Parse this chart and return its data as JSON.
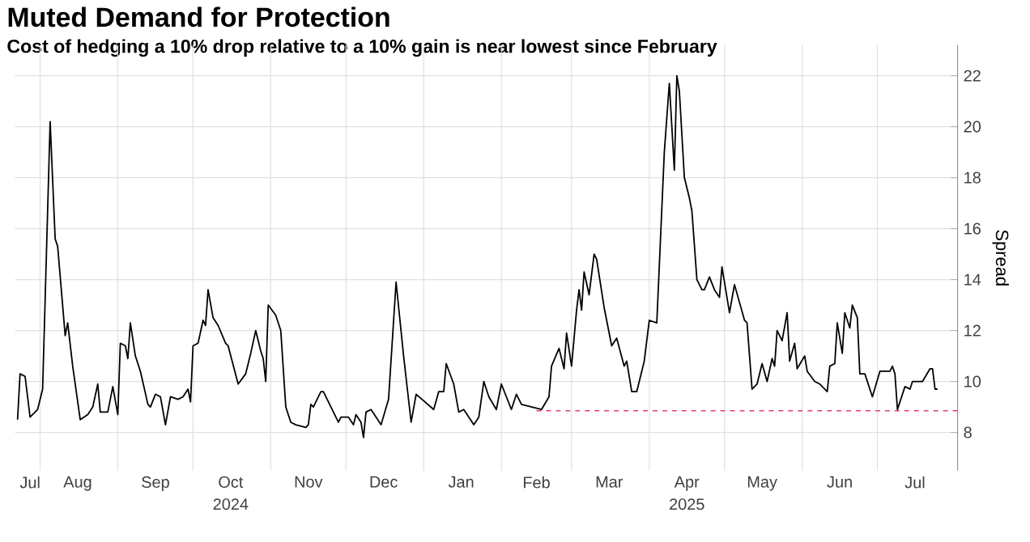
{
  "chart_data": {
    "type": "line",
    "title": "Muted Demand for Protection",
    "subtitle": "Cost of hedging a 10% drop relative to a 10% gain is near lowest since February",
    "ylabel": "Spread",
    "xlim": [
      "2024-07-22",
      "2025-08-02"
    ],
    "ylim": [
      6.5,
      23.2
    ],
    "yticks": [
      8,
      10,
      12,
      14,
      16,
      18,
      20,
      22
    ],
    "xticks": [
      {
        "value": "2024-07-28",
        "label": "Jul"
      },
      {
        "value": "2024-08-01",
        "label": null
      },
      {
        "value": "2024-08-16",
        "label": "Aug"
      },
      {
        "value": "2024-09-01",
        "label": null
      },
      {
        "value": "2024-09-16",
        "label": "Sep"
      },
      {
        "value": "2024-10-01",
        "label": null
      },
      {
        "value": "2024-10-16",
        "label": "Oct"
      },
      {
        "value": "2024-11-01",
        "label": null
      },
      {
        "value": "2024-11-16",
        "label": "Nov"
      },
      {
        "value": "2024-12-01",
        "label": null
      },
      {
        "value": "2024-12-16",
        "label": "Dec"
      },
      {
        "value": "2025-01-01",
        "label": null
      },
      {
        "value": "2025-01-16",
        "label": "Jan"
      },
      {
        "value": "2025-02-01",
        "label": null
      },
      {
        "value": "2025-02-15",
        "label": "Feb"
      },
      {
        "value": "2025-03-01",
        "label": null
      },
      {
        "value": "2025-03-16",
        "label": "Mar"
      },
      {
        "value": "2025-04-01",
        "label": null
      },
      {
        "value": "2025-04-16",
        "label": "Apr"
      },
      {
        "value": "2025-05-01",
        "label": null
      },
      {
        "value": "2025-05-16",
        "label": "May"
      },
      {
        "value": "2025-06-01",
        "label": null
      },
      {
        "value": "2025-06-16",
        "label": "Jun"
      },
      {
        "value": "2025-07-01",
        "label": null
      },
      {
        "value": "2025-07-16",
        "label": "Jul"
      }
    ],
    "annotations": [
      "2024",
      "2025"
    ],
    "grid": true,
    "series": [
      {
        "color": "#000000",
        "x": [
          "2024-07-23",
          "2024-07-24",
          "2024-07-26",
          "2024-07-28",
          "2024-07-31",
          "2024-08-02",
          "2024-08-05",
          "2024-08-07",
          "2024-08-08",
          "2024-08-11",
          "2024-08-12",
          "2024-08-14",
          "2024-08-17",
          "2024-08-20",
          "2024-08-22",
          "2024-08-24",
          "2024-08-25",
          "2024-08-28",
          "2024-08-30",
          "2024-09-01",
          "2024-09-02",
          "2024-09-04",
          "2024-09-05",
          "2024-09-06",
          "2024-09-08",
          "2024-09-10",
          "2024-09-13",
          "2024-09-14",
          "2024-09-16",
          "2024-09-18",
          "2024-09-20",
          "2024-09-22",
          "2024-09-25",
          "2024-09-27",
          "2024-09-29",
          "2024-09-30",
          "2024-10-01",
          "2024-10-03",
          "2024-10-05",
          "2024-10-06",
          "2024-10-07",
          "2024-10-09",
          "2024-10-11",
          "2024-10-14",
          "2024-10-15",
          "2024-10-19",
          "2024-10-22",
          "2024-10-24",
          "2024-10-26",
          "2024-10-28",
          "2024-10-29",
          "2024-10-30",
          "2024-10-31",
          "2024-11-03",
          "2024-11-05",
          "2024-11-07",
          "2024-11-09",
          "2024-11-11",
          "2024-11-15",
          "2024-11-16",
          "2024-11-17",
          "2024-11-18",
          "2024-11-21",
          "2024-11-22",
          "2024-11-28",
          "2024-11-29",
          "2024-12-02",
          "2024-12-04",
          "2024-12-05",
          "2024-12-07",
          "2024-12-08",
          "2024-12-09",
          "2024-12-11",
          "2024-12-15",
          "2024-12-18",
          "2024-12-21",
          "2024-12-24",
          "2024-12-27",
          "2024-12-29",
          "2025-01-05",
          "2025-01-07",
          "2025-01-09",
          "2025-01-10",
          "2025-01-13",
          "2025-01-15",
          "2025-01-17",
          "2025-01-21",
          "2025-01-23",
          "2025-01-25",
          "2025-01-27",
          "2025-01-30",
          "2025-02-01",
          "2025-02-05",
          "2025-02-07",
          "2025-02-09",
          "2025-02-13",
          "2025-02-17",
          "2025-02-20",
          "2025-02-21",
          "2025-02-24",
          "2025-02-26",
          "2025-02-27",
          "2025-03-01",
          "2025-03-03",
          "2025-03-04",
          "2025-03-05",
          "2025-03-06",
          "2025-03-08",
          "2025-03-10",
          "2025-03-11",
          "2025-03-14",
          "2025-03-17",
          "2025-03-19",
          "2025-03-22",
          "2025-03-23",
          "2025-03-25",
          "2025-03-27",
          "2025-03-29",
          "2025-03-30",
          "2025-04-01",
          "2025-04-04",
          "2025-04-07",
          "2025-04-09",
          "2025-04-11",
          "2025-04-12",
          "2025-04-13",
          "2025-04-15",
          "2025-04-17",
          "2025-04-18",
          "2025-04-20",
          "2025-04-22",
          "2025-04-23",
          "2025-04-25",
          "2025-04-27",
          "2025-04-29",
          "2025-04-30",
          "2025-05-03",
          "2025-05-05",
          "2025-05-09",
          "2025-05-10",
          "2025-05-12",
          "2025-05-14",
          "2025-05-16",
          "2025-05-18",
          "2025-05-20",
          "2025-05-21",
          "2025-05-22",
          "2025-05-24",
          "2025-05-26",
          "2025-05-27",
          "2025-05-29",
          "2025-05-30",
          "2025-06-02",
          "2025-06-03",
          "2025-06-06",
          "2025-06-08",
          "2025-06-11",
          "2025-06-12",
          "2025-06-14",
          "2025-06-15",
          "2025-06-17",
          "2025-06-18",
          "2025-06-20",
          "2025-06-21",
          "2025-06-23",
          "2025-06-24",
          "2025-06-26",
          "2025-06-29",
          "2025-07-02",
          "2025-07-06",
          "2025-07-07",
          "2025-07-08",
          "2025-07-09",
          "2025-07-12",
          "2025-07-14",
          "2025-07-15",
          "2025-07-19",
          "2025-07-22",
          "2025-07-23",
          "2025-07-24",
          "2025-07-25"
        ],
        "values": [
          8.5,
          10.3,
          10.2,
          8.6,
          8.9,
          9.7,
          20.2,
          15.6,
          15.3,
          11.8,
          12.3,
          10.6,
          8.5,
          8.7,
          9.0,
          9.9,
          8.8,
          8.8,
          9.8,
          8.7,
          11.5,
          11.4,
          10.9,
          12.3,
          11.0,
          10.4,
          9.1,
          9.0,
          9.5,
          9.4,
          8.3,
          9.4,
          9.3,
          9.4,
          9.7,
          9.2,
          11.4,
          11.5,
          12.4,
          12.2,
          13.6,
          12.5,
          12.2,
          11.5,
          11.4,
          9.9,
          10.3,
          11.1,
          12.0,
          11.2,
          10.9,
          10.0,
          13.0,
          12.6,
          12.0,
          9.0,
          8.4,
          8.3,
          8.2,
          8.3,
          9.1,
          9.0,
          9.6,
          9.6,
          8.4,
          8.6,
          8.6,
          8.3,
          8.7,
          8.4,
          7.8,
          8.8,
          8.9,
          8.3,
          9.3,
          13.9,
          11.0,
          8.4,
          9.5,
          8.9,
          9.6,
          9.6,
          10.7,
          9.9,
          8.8,
          8.9,
          8.3,
          8.6,
          10.0,
          9.4,
          8.9,
          9.9,
          8.9,
          9.5,
          9.1,
          9.0,
          8.9,
          9.4,
          10.6,
          11.3,
          10.5,
          11.9,
          10.6,
          12.8,
          13.6,
          12.8,
          14.3,
          13.4,
          15.0,
          14.8,
          12.9,
          11.4,
          11.7,
          10.6,
          10.8,
          9.6,
          9.6,
          10.4,
          10.8,
          12.4,
          12.3,
          19.0,
          21.7,
          18.3,
          22.0,
          21.4,
          18.0,
          17.2,
          16.7,
          14.0,
          13.6,
          13.6,
          14.1,
          13.6,
          13.3,
          14.5,
          12.7,
          13.8,
          12.4,
          12.3,
          9.7,
          9.9,
          10.7,
          10.0,
          10.9,
          10.6,
          12.0,
          11.6,
          12.7,
          10.8,
          11.5,
          10.5,
          11.0,
          10.4,
          10.0,
          9.9,
          9.6,
          10.6,
          10.7,
          12.3,
          11.1,
          12.7,
          12.1,
          13.0,
          12.5,
          10.3,
          10.3,
          9.4,
          10.4,
          10.4,
          10.6,
          10.3,
          8.9,
          9.8,
          9.7,
          10.0,
          10.0,
          10.5,
          10.5,
          9.7,
          9.7
        ]
      },
      {
        "color": "#e8406a",
        "line_style": "dashed",
        "x": [
          "2025-02-15",
          "2025-08-02"
        ],
        "values": [
          8.85,
          8.85
        ]
      }
    ]
  }
}
